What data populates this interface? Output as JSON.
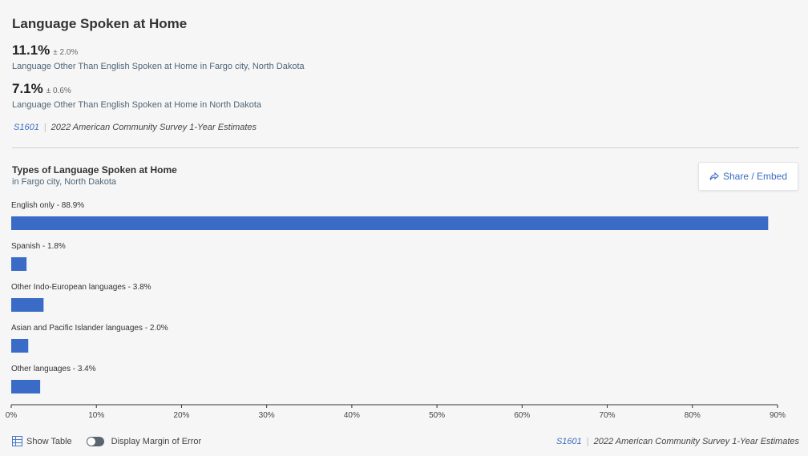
{
  "header": {
    "title": "Language Spoken at Home"
  },
  "stats": [
    {
      "value": "11.1%",
      "moe": "± 2.0%",
      "description": "Language Other Than English Spoken at Home in Fargo city, North Dakota"
    },
    {
      "value": "7.1%",
      "moe": "± 0.6%",
      "description": "Language Other Than English Spoken at Home in North Dakota"
    }
  ],
  "source": {
    "code": "S1601",
    "name": "2022 American Community Survey 1-Year Estimates"
  },
  "chart_header": {
    "title": "Types of Language Spoken at Home",
    "subtitle": "in Fargo city, North Dakota",
    "share_label": "Share / Embed"
  },
  "chart_data": {
    "type": "bar",
    "orientation": "horizontal",
    "categories": [
      "English only",
      "Spanish",
      "Other Indo-European languages",
      "Asian and Pacific Islander languages",
      "Other languages"
    ],
    "values": [
      88.9,
      1.8,
      3.8,
      2.0,
      3.4
    ],
    "labels": [
      "English only - 88.9%",
      "Spanish - 1.8%",
      "Other Indo-European languages - 3.8%",
      "Asian and Pacific Islander languages - 2.0%",
      "Other languages - 3.4%"
    ],
    "xlim": [
      0,
      90
    ],
    "xticks": [
      "0%",
      "10%",
      "20%",
      "30%",
      "40%",
      "50%",
      "60%",
      "70%",
      "80%",
      "90%"
    ],
    "bar_color": "#3a6cc7",
    "grid": false
  },
  "footer": {
    "show_table_label": "Show Table",
    "moe_toggle_label": "Display Margin of Error"
  },
  "colors": {
    "accent": "#3a6cc2",
    "bar": "#3a6cc7"
  }
}
